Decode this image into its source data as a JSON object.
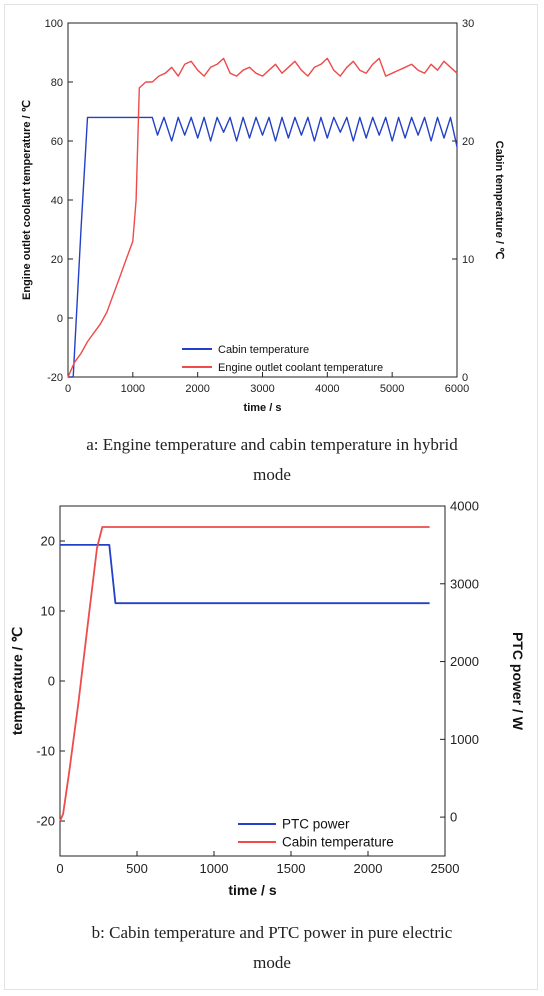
{
  "chart_data": [
    {
      "type": "line",
      "xlabel": "time / s",
      "ylabel": "Engine outlet coolant temperature / ℃",
      "y2label": "Cabin temperature / ℃",
      "xlim": [
        0,
        6000
      ],
      "ylim": [
        -20,
        100
      ],
      "y2lim": [
        0,
        30
      ],
      "xticks": [
        "0",
        "1000",
        "2000",
        "3000",
        "4000",
        "5000",
        "6000"
      ],
      "yticks": [
        "-20",
        "0",
        "20",
        "40",
        "60",
        "80",
        "100"
      ],
      "y2ticks": [
        "0",
        "10",
        "20",
        "30"
      ],
      "legend_position": "bottom-right",
      "grid": false,
      "series": [
        {
          "name": "Cabin temperature",
          "color": "#2340c8",
          "axis": "left",
          "x": [
            0,
            80,
            200,
            300,
            1300,
            1380,
            1480,
            1600,
            1700,
            1800,
            1900,
            2000,
            2100,
            2200,
            2300,
            2400,
            2500,
            2600,
            2700,
            2800,
            2900,
            3000,
            3100,
            3200,
            3300,
            3400,
            3500,
            3600,
            3700,
            3800,
            3900,
            4000,
            4100,
            4200,
            4300,
            4400,
            4500,
            4600,
            4700,
            4800,
            4900,
            5000,
            5100,
            5200,
            5300,
            5400,
            5500,
            5600,
            5700,
            5800,
            5900,
            6000
          ],
          "values": [
            -20,
            -20,
            30,
            68,
            68,
            62,
            68,
            60,
            68,
            62,
            68,
            61,
            68,
            60,
            68,
            63,
            68,
            60,
            68,
            61,
            68,
            62,
            68,
            60,
            68,
            61,
            68,
            62,
            68,
            60,
            68,
            61,
            68,
            63,
            68,
            60,
            68,
            61,
            68,
            62,
            68,
            60,
            68,
            61,
            68,
            62,
            68,
            60,
            68,
            61,
            68,
            58
          ]
        },
        {
          "name": "Engine outlet coolant temperature",
          "color": "#ee4b4b",
          "axis": "left",
          "x": [
            0,
            100,
            200,
            300,
            400,
            500,
            600,
            700,
            800,
            900,
            1000,
            1050,
            1100,
            1200,
            1300,
            1400,
            1500,
            1600,
            1700,
            1800,
            1900,
            2000,
            2100,
            2200,
            2300,
            2400,
            2500,
            2600,
            2700,
            2800,
            2900,
            3000,
            3100,
            3200,
            3300,
            3400,
            3500,
            3600,
            3700,
            3800,
            3900,
            4000,
            4100,
            4200,
            4300,
            4400,
            4500,
            4600,
            4700,
            4800,
            4900,
            5000,
            5100,
            5200,
            5300,
            5400,
            5500,
            5600,
            5700,
            5800,
            5900,
            6000
          ],
          "values": [
            -20,
            -15,
            -12,
            -8,
            -5,
            -2,
            2,
            8,
            14,
            20,
            26,
            40,
            78,
            80,
            80,
            82,
            83,
            85,
            82,
            86,
            87,
            84,
            82,
            85,
            86,
            88,
            83,
            82,
            84,
            85,
            83,
            82,
            84,
            86,
            83,
            85,
            87,
            84,
            82,
            85,
            86,
            88,
            84,
            82,
            85,
            87,
            84,
            83,
            86,
            88,
            82,
            83,
            84,
            85,
            86,
            84,
            83,
            86,
            84,
            87,
            85,
            83
          ]
        }
      ]
    },
    {
      "type": "line",
      "xlabel": "time / s",
      "ylabel": "temperature / ℃",
      "y2label": "PTC power / W",
      "xlim": [
        0,
        2500
      ],
      "ylim": [
        -25,
        25
      ],
      "y2lim": [
        -500,
        4000
      ],
      "xticks": [
        "0",
        "500",
        "1000",
        "1500",
        "2000",
        "2500"
      ],
      "yticks": [
        "-20",
        "-10",
        "0",
        "10",
        "20"
      ],
      "y2ticks": [
        "0",
        "1000",
        "2000",
        "3000",
        "4000"
      ],
      "legend_position": "bottom-right",
      "grid": false,
      "series": [
        {
          "name": "PTC power",
          "color": "#2340c8",
          "axis": "right",
          "x": [
            0,
            320,
            360,
            2400
          ],
          "values": [
            3500,
            3500,
            2750,
            2750
          ]
        },
        {
          "name": "Cabin temperature",
          "color": "#ee4b4b",
          "axis": "left",
          "x": [
            0,
            20,
            60,
            120,
            180,
            240,
            275,
            300,
            2400
          ],
          "values": [
            -20,
            -19,
            -13,
            -3,
            8,
            19,
            22,
            22,
            22
          ]
        }
      ]
    }
  ],
  "captions": {
    "a_line1": "a: Engine temperature and cabin temperature in hybrid",
    "a_line2": "mode",
    "b_line1": "b: Cabin temperature and PTC power in pure electric",
    "b_line2": "mode"
  }
}
